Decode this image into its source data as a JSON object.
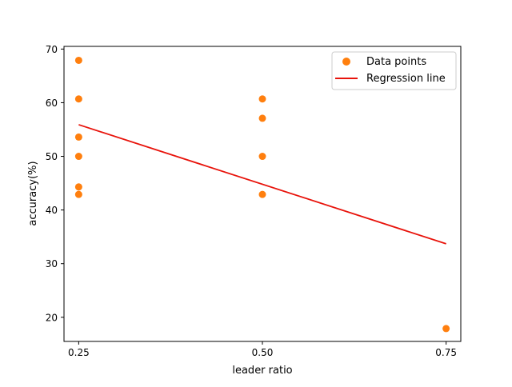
{
  "chart_data": {
    "type": "scatter",
    "xlabel": "leader ratio",
    "ylabel": "accuracy(%)",
    "xlim": [
      0.23,
      0.77
    ],
    "ylim": [
      15.5,
      70.5
    ],
    "xticks": [
      0.25,
      0.5,
      0.75
    ],
    "xtick_labels": [
      "0.25",
      "0.50",
      "0.75"
    ],
    "yticks": [
      20,
      30,
      40,
      50,
      60,
      70
    ],
    "ytick_labels": [
      "20",
      "30",
      "40",
      "50",
      "60",
      "70"
    ],
    "grid": false,
    "legend_position": "top-right",
    "series": [
      {
        "name": "Data points",
        "kind": "scatter",
        "color": "#ff7f0e",
        "points": [
          {
            "x": 0.25,
            "y": 67.9
          },
          {
            "x": 0.25,
            "y": 60.7
          },
          {
            "x": 0.25,
            "y": 53.6
          },
          {
            "x": 0.25,
            "y": 50.0
          },
          {
            "x": 0.25,
            "y": 44.3
          },
          {
            "x": 0.25,
            "y": 42.9
          },
          {
            "x": 0.5,
            "y": 60.7
          },
          {
            "x": 0.5,
            "y": 57.1
          },
          {
            "x": 0.5,
            "y": 50.0
          },
          {
            "x": 0.5,
            "y": 42.9
          },
          {
            "x": 0.75,
            "y": 17.9
          }
        ]
      },
      {
        "name": "Regression line",
        "kind": "line",
        "color": "#e8140c",
        "points": [
          {
            "x": 0.25,
            "y": 55.9
          },
          {
            "x": 0.75,
            "y": 33.7
          }
        ]
      }
    ]
  }
}
